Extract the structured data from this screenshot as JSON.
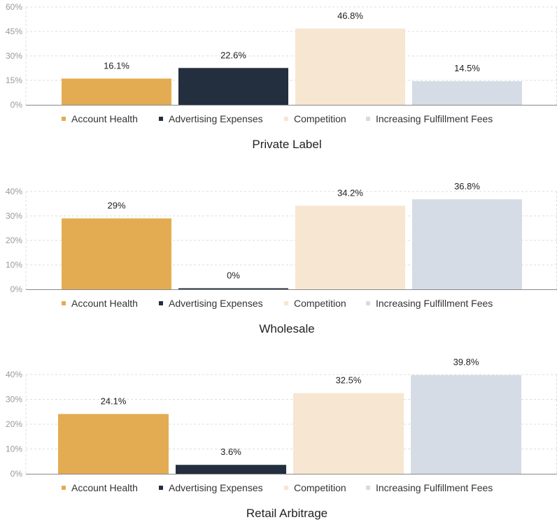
{
  "chart_data": [
    {
      "type": "bar",
      "title": "Private Label",
      "categories": [
        "Account Health",
        "Advertising Expenses",
        "Competition",
        "Increasing Fulfillment Fees"
      ],
      "values": [
        16.1,
        22.6,
        46.8,
        14.5
      ],
      "value_labels": [
        "16.1%",
        "22.6%",
        "46.8%",
        "14.5%"
      ],
      "y_ticks": [
        "0%",
        "15%",
        "30%",
        "45%",
        "60%"
      ],
      "ylim": [
        0,
        60
      ],
      "grid": true,
      "legend": "bottom"
    },
    {
      "type": "bar",
      "title": "Wholesale",
      "categories": [
        "Account Health",
        "Advertising Expenses",
        "Competition",
        "Increasing Fulfillment Fees"
      ],
      "values": [
        29,
        0,
        34.2,
        36.8
      ],
      "value_labels": [
        "29%",
        "0%",
        "34.2%",
        "36.8%"
      ],
      "y_ticks": [
        "0%",
        "10%",
        "20%",
        "30%",
        "40%"
      ],
      "ylim": [
        0,
        40
      ],
      "grid": true,
      "legend": "bottom"
    },
    {
      "type": "bar",
      "title": "Retail Arbitrage",
      "categories": [
        "Account Health",
        "Advertising Expenses",
        "Competition",
        "Increasing Fulfillment Fees"
      ],
      "values": [
        24.1,
        3.6,
        32.5,
        39.8
      ],
      "value_labels": [
        "24.1%",
        "3.6%",
        "32.5%",
        "39.8%"
      ],
      "y_ticks": [
        "0%",
        "10%",
        "20%",
        "30%",
        "40%"
      ],
      "ylim": [
        0,
        40
      ],
      "grid": true,
      "legend": "bottom"
    }
  ],
  "colors": [
    "#e3ac52",
    "#232f3e",
    "#f7e6d1",
    "#d5dce6"
  ]
}
